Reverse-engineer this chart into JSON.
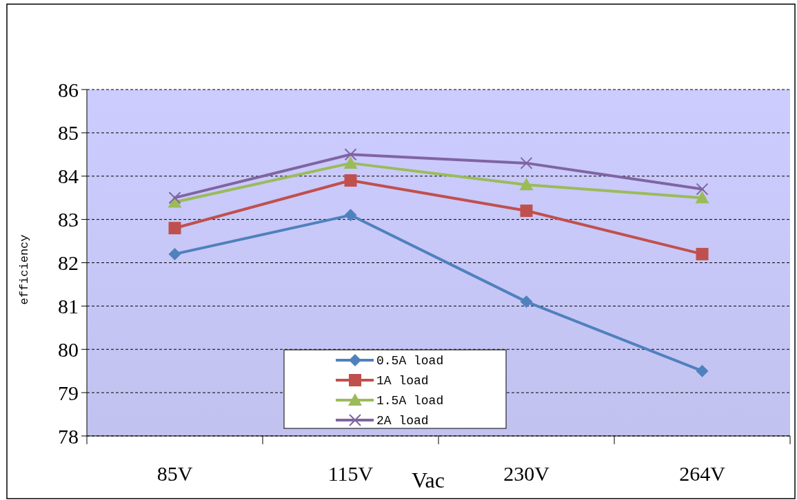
{
  "chart_data": {
    "type": "line",
    "xlabel": "Vac",
    "ylabel": "efficiency",
    "categories": [
      "85V",
      "115V",
      "230V",
      "264V"
    ],
    "ylim": [
      78,
      86
    ],
    "yticks": [
      78,
      79,
      80,
      81,
      82,
      83,
      84,
      85,
      86
    ],
    "grid": "y",
    "legend": "bottom",
    "line_style": "solid",
    "series": [
      {
        "name": "0.5A load",
        "color": "#4f81bd",
        "marker": "diamond",
        "values": [
          82.2,
          83.1,
          81.1,
          79.5
        ]
      },
      {
        "name": "1A load",
        "color": "#c0504d",
        "marker": "square",
        "values": [
          82.8,
          83.9,
          83.2,
          82.2
        ]
      },
      {
        "name": "1.5A load",
        "color": "#9bbb59",
        "marker": "triangle",
        "values": [
          83.4,
          84.3,
          83.8,
          83.5
        ]
      },
      {
        "name": "2A load",
        "color": "#8064a2",
        "marker": "cross",
        "values": [
          83.5,
          84.5,
          84.3,
          83.7
        ]
      }
    ]
  }
}
